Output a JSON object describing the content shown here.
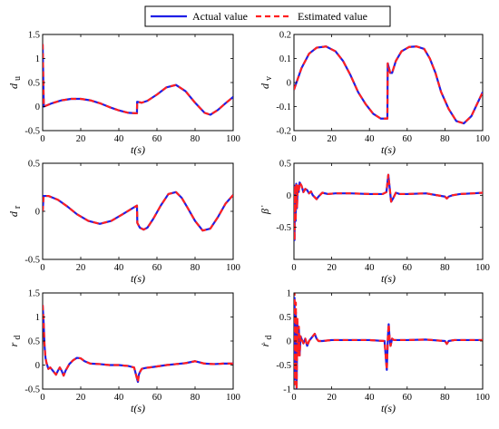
{
  "legend": {
    "entries": [
      {
        "label": "Actual value",
        "color": "#1f1fe6",
        "style": "solid"
      },
      {
        "label": "Estimated value",
        "color": "#ff2020",
        "style": "dashed"
      }
    ]
  },
  "chart_data": [
    {
      "type": "line",
      "id": "du",
      "ylabel": "d",
      "ylabel_sub": "u",
      "xlabel": "t(s)",
      "xlim": [
        0,
        100
      ],
      "ylim": [
        -0.5,
        1.5
      ],
      "xticks": [
        0,
        20,
        40,
        60,
        80,
        100
      ],
      "xtick_labels": [
        "0",
        "20",
        "40",
        "60",
        "80",
        "100"
      ],
      "yticks": [
        -0.5,
        0,
        0.5,
        1,
        1.5
      ],
      "ytick_labels": [
        "-0.5",
        "0",
        "0.5",
        "1",
        "1.5"
      ],
      "series": [
        {
          "name": "Actual value",
          "x": [
            0,
            0.6,
            5,
            10,
            15,
            20,
            25,
            30,
            35,
            40,
            45,
            49.5,
            49.6,
            52,
            55,
            60,
            65,
            70,
            75,
            80,
            85,
            88,
            92,
            96,
            100
          ],
          "y": [
            1.3,
            0.0,
            0.07,
            0.13,
            0.16,
            0.16,
            0.13,
            0.07,
            -0.01,
            -0.08,
            -0.13,
            -0.14,
            0.1,
            0.08,
            0.12,
            0.25,
            0.4,
            0.45,
            0.32,
            0.08,
            -0.13,
            -0.17,
            -0.07,
            0.07,
            0.2
          ]
        },
        {
          "name": "Estimated value",
          "x": [
            0,
            0.6,
            5,
            10,
            15,
            20,
            25,
            30,
            35,
            40,
            45,
            49.5,
            49.6,
            52,
            55,
            60,
            65,
            70,
            75,
            80,
            85,
            88,
            92,
            96,
            100
          ],
          "y": [
            1.3,
            0.0,
            0.07,
            0.13,
            0.16,
            0.16,
            0.13,
            0.07,
            -0.01,
            -0.08,
            -0.13,
            -0.14,
            0.1,
            0.08,
            0.12,
            0.25,
            0.4,
            0.45,
            0.32,
            0.08,
            -0.13,
            -0.17,
            -0.07,
            0.07,
            0.2
          ]
        }
      ]
    },
    {
      "type": "line",
      "id": "dv",
      "ylabel": "d",
      "ylabel_sub": "v",
      "xlabel": "t(s)",
      "xlim": [
        0,
        100
      ],
      "ylim": [
        -0.2,
        0.2
      ],
      "xticks": [
        0,
        20,
        40,
        60,
        80,
        100
      ],
      "xtick_labels": [
        "0",
        "20",
        "40",
        "60",
        "80",
        "100"
      ],
      "yticks": [
        -0.2,
        -0.1,
        0,
        0.1,
        0.2
      ],
      "ytick_labels": [
        "-0.2",
        "-0.1",
        "0",
        "0.1",
        "0.2"
      ],
      "series": [
        {
          "name": "Actual value",
          "x": [
            0,
            4,
            8,
            12,
            17,
            22,
            26,
            30,
            34,
            38,
            42,
            46,
            49.5,
            49.7,
            51,
            52,
            54,
            57,
            61,
            65,
            69,
            72,
            75,
            78,
            82,
            86,
            90,
            94,
            97,
            100
          ],
          "y": [
            -0.03,
            0.06,
            0.12,
            0.145,
            0.15,
            0.13,
            0.09,
            0.03,
            -0.04,
            -0.09,
            -0.13,
            -0.15,
            -0.15,
            0.08,
            0.04,
            0.04,
            0.09,
            0.13,
            0.148,
            0.15,
            0.14,
            0.1,
            0.04,
            -0.04,
            -0.11,
            -0.16,
            -0.17,
            -0.14,
            -0.09,
            -0.04
          ]
        },
        {
          "name": "Estimated value",
          "x": [
            0,
            4,
            8,
            12,
            17,
            22,
            26,
            30,
            34,
            38,
            42,
            46,
            49.5,
            49.7,
            51,
            52,
            54,
            57,
            61,
            65,
            69,
            72,
            75,
            78,
            82,
            86,
            90,
            94,
            97,
            100
          ],
          "y": [
            -0.03,
            0.06,
            0.12,
            0.145,
            0.15,
            0.13,
            0.09,
            0.03,
            -0.04,
            -0.09,
            -0.13,
            -0.15,
            -0.15,
            0.08,
            0.04,
            0.04,
            0.09,
            0.13,
            0.148,
            0.15,
            0.14,
            0.1,
            0.04,
            -0.04,
            -0.11,
            -0.16,
            -0.17,
            -0.14,
            -0.09,
            -0.04
          ]
        }
      ]
    },
    {
      "type": "line",
      "id": "dr",
      "ylabel": "d",
      "ylabel_sub": "r",
      "xlabel": "t(s)",
      "xlim": [
        0,
        100
      ],
      "ylim": [
        -0.5,
        0.5
      ],
      "xticks": [
        0,
        20,
        40,
        60,
        80,
        100
      ],
      "xtick_labels": [
        "0",
        "20",
        "40",
        "60",
        "80",
        "100"
      ],
      "yticks": [
        -0.5,
        0,
        0.5
      ],
      "ytick_labels": [
        "-0.5",
        "0",
        "0.5"
      ],
      "series": [
        {
          "name": "Actual value",
          "x": [
            0,
            0.5,
            3,
            8,
            13,
            18,
            24,
            30,
            36,
            42,
            47,
            49.5,
            49.7,
            51,
            53,
            55,
            58,
            62,
            66,
            70,
            73,
            76,
            80,
            84,
            88,
            92,
            96,
            100
          ],
          "y": [
            0.0,
            0.16,
            0.16,
            0.12,
            0.05,
            -0.03,
            -0.1,
            -0.13,
            -0.1,
            -0.03,
            0.03,
            0.06,
            -0.12,
            -0.17,
            -0.19,
            -0.17,
            -0.08,
            0.06,
            0.18,
            0.2,
            0.14,
            0.04,
            -0.1,
            -0.2,
            -0.18,
            -0.06,
            0.08,
            0.17
          ]
        },
        {
          "name": "Estimated value",
          "x": [
            0,
            0.5,
            3,
            8,
            13,
            18,
            24,
            30,
            36,
            42,
            47,
            49.5,
            49.7,
            51,
            53,
            55,
            58,
            62,
            66,
            70,
            73,
            76,
            80,
            84,
            88,
            92,
            96,
            100
          ],
          "y": [
            0.0,
            0.16,
            0.16,
            0.12,
            0.05,
            -0.03,
            -0.1,
            -0.13,
            -0.1,
            -0.03,
            0.03,
            0.06,
            -0.12,
            -0.17,
            -0.19,
            -0.17,
            -0.08,
            0.06,
            0.18,
            0.2,
            0.14,
            0.04,
            -0.1,
            -0.2,
            -0.18,
            -0.06,
            0.08,
            0.17
          ]
        }
      ]
    },
    {
      "type": "line",
      "id": "beta",
      "ylabel": "β̇",
      "ylabel_sub": "",
      "xlabel": "t(s)",
      "xlim": [
        0,
        100
      ],
      "ylim": [
        -1,
        0.5
      ],
      "xticks": [
        0,
        20,
        40,
        60,
        80,
        100
      ],
      "xtick_labels": [
        "0",
        "20",
        "40",
        "60",
        "80",
        "100"
      ],
      "yticks": [
        -0.5,
        0,
        0.5
      ],
      "ytick_labels": [
        "-0.5",
        "0",
        "0.5"
      ],
      "series": [
        {
          "name": "Actual value",
          "x": [
            0,
            0.3,
            0.6,
            0.9,
            1.2,
            1.6,
            2,
            2.5,
            3,
            4,
            5,
            6,
            7,
            8,
            9,
            10,
            11,
            12,
            13,
            15,
            18,
            22,
            30,
            40,
            47,
            49,
            50,
            50.6,
            51.5,
            52.5,
            54,
            56,
            60,
            70,
            80,
            81,
            82,
            84,
            88,
            95,
            100
          ],
          "y": [
            0,
            -0.7,
            0.15,
            -0.4,
            0.18,
            -0.2,
            0.15,
            0.05,
            0.2,
            0.15,
            0.05,
            0.1,
            0.08,
            0.03,
            0.06,
            0.0,
            -0.03,
            -0.06,
            -0.02,
            0.04,
            0.02,
            0.03,
            0.03,
            0.02,
            0.02,
            0.05,
            0.32,
            0.15,
            -0.1,
            -0.05,
            0.04,
            0.02,
            0.02,
            0.03,
            -0.02,
            -0.05,
            -0.02,
            0.0,
            0.02,
            0.03,
            0.04
          ]
        },
        {
          "name": "Estimated value",
          "x": [
            0,
            0.3,
            0.6,
            0.9,
            1.2,
            1.6,
            2,
            2.5,
            3,
            4,
            5,
            6,
            7,
            8,
            9,
            10,
            11,
            12,
            13,
            15,
            18,
            22,
            30,
            40,
            47,
            49,
            50,
            50.6,
            51.5,
            52.5,
            54,
            56,
            60,
            70,
            80,
            81,
            82,
            84,
            88,
            95,
            100
          ],
          "y": [
            0,
            -0.7,
            0.15,
            -0.4,
            0.18,
            -0.2,
            0.15,
            0.05,
            0.2,
            0.15,
            0.05,
            0.1,
            0.08,
            0.03,
            0.06,
            0.0,
            -0.03,
            -0.06,
            -0.02,
            0.04,
            0.02,
            0.03,
            0.03,
            0.02,
            0.02,
            0.05,
            0.32,
            0.15,
            -0.1,
            -0.05,
            0.04,
            0.02,
            0.02,
            0.03,
            -0.02,
            -0.05,
            -0.02,
            0.0,
            0.02,
            0.03,
            0.04
          ]
        }
      ]
    },
    {
      "type": "line",
      "id": "rd",
      "ylabel": "r",
      "ylabel_sub": "d",
      "xlabel": "t(s)",
      "xlim": [
        0,
        100
      ],
      "ylim": [
        -0.5,
        1.5
      ],
      "xticks": [
        0,
        20,
        40,
        60,
        80,
        100
      ],
      "xtick_labels": [
        "0",
        "20",
        "40",
        "60",
        "80",
        "100"
      ],
      "yticks": [
        -0.5,
        0,
        0.5,
        1,
        1.5
      ],
      "ytick_labels": [
        "-0.5",
        "0",
        "0.5",
        "1",
        "1.5"
      ],
      "series": [
        {
          "name": "Actual value",
          "x": [
            0,
            0.5,
            1,
            1.5,
            2,
            3,
            4,
            5,
            6,
            7,
            8,
            9,
            10,
            11,
            12,
            14,
            16,
            18,
            20,
            22,
            25,
            30,
            35,
            40,
            45,
            48,
            49,
            50,
            50.5,
            51,
            52,
            54,
            58,
            65,
            70,
            75,
            80,
            82,
            85,
            90,
            95,
            100
          ],
          "y": [
            1.25,
            0.9,
            0.4,
            0.15,
            0.05,
            -0.08,
            -0.05,
            -0.1,
            -0.15,
            -0.2,
            -0.12,
            -0.05,
            -0.12,
            -0.22,
            -0.12,
            0.02,
            0.1,
            0.15,
            0.14,
            0.08,
            0.03,
            0.02,
            0.0,
            0.0,
            -0.02,
            -0.05,
            -0.2,
            -0.35,
            -0.2,
            -0.15,
            -0.08,
            -0.06,
            -0.04,
            0.0,
            0.02,
            0.04,
            0.08,
            0.06,
            0.03,
            0.02,
            0.03,
            0.03
          ]
        },
        {
          "name": "Estimated value",
          "x": [
            0,
            0.5,
            1,
            1.5,
            2,
            3,
            4,
            5,
            6,
            7,
            8,
            9,
            10,
            11,
            12,
            14,
            16,
            18,
            20,
            22,
            25,
            30,
            35,
            40,
            45,
            48,
            49,
            50,
            50.5,
            51,
            52,
            54,
            58,
            65,
            70,
            75,
            80,
            82,
            85,
            90,
            95,
            100
          ],
          "y": [
            1.25,
            0.9,
            0.4,
            0.15,
            0.05,
            -0.08,
            -0.05,
            -0.1,
            -0.15,
            -0.2,
            -0.12,
            -0.05,
            -0.12,
            -0.22,
            -0.12,
            0.02,
            0.1,
            0.15,
            0.14,
            0.08,
            0.03,
            0.02,
            0.0,
            0.0,
            -0.02,
            -0.05,
            -0.2,
            -0.35,
            -0.2,
            -0.15,
            -0.08,
            -0.06,
            -0.04,
            0.0,
            0.02,
            0.04,
            0.08,
            0.06,
            0.03,
            0.02,
            0.03,
            0.03
          ]
        }
      ]
    },
    {
      "type": "line",
      "id": "rdot",
      "ylabel": "ṙ",
      "ylabel_sub": "d",
      "xlabel": "t(s)",
      "xlim": [
        0,
        100
      ],
      "ylim": [
        -1,
        1
      ],
      "xticks": [
        0,
        20,
        40,
        60,
        80,
        100
      ],
      "xtick_labels": [
        "0",
        "20",
        "40",
        "60",
        "80",
        "100"
      ],
      "yticks": [
        -1,
        -0.5,
        0,
        0.5,
        1
      ],
      "ytick_labels": [
        "-1",
        "-0.5",
        "0",
        "0.5",
        "1"
      ],
      "series": [
        {
          "name": "Actual value",
          "x": [
            0,
            0.3,
            0.6,
            1,
            1.4,
            1.8,
            2.2,
            2.6,
            3,
            3.5,
            4,
            5,
            6,
            7,
            8,
            9,
            10,
            11,
            12,
            13,
            15,
            20,
            30,
            40,
            48,
            49.2,
            49.8,
            50.2,
            50.7,
            51.2,
            52,
            53,
            56,
            60,
            70,
            80,
            81,
            82,
            85,
            90,
            100
          ],
          "y": [
            0,
            0.9,
            -0.8,
            0.6,
            -1.0,
            0.4,
            -0.2,
            0.25,
            -0.3,
            0.1,
            0.05,
            -0.05,
            0.05,
            -0.1,
            0.0,
            0.05,
            0.1,
            0.15,
            0.05,
            0.0,
            0.0,
            0.02,
            0.02,
            0.02,
            0.0,
            -0.6,
            0.1,
            0.35,
            0.05,
            -0.1,
            0.05,
            0.02,
            0.02,
            0.02,
            0.03,
            0.0,
            -0.06,
            0.0,
            0.02,
            0.02,
            0.02
          ]
        },
        {
          "name": "Estimated value",
          "x": [
            0,
            0.3,
            0.6,
            1,
            1.4,
            1.8,
            2.2,
            2.6,
            3,
            3.5,
            4,
            5,
            6,
            7,
            8,
            9,
            10,
            11,
            12,
            13,
            15,
            20,
            30,
            40,
            48,
            49.2,
            49.8,
            50.2,
            50.7,
            51.2,
            52,
            53,
            56,
            60,
            70,
            80,
            81,
            82,
            85,
            90,
            100
          ],
          "y": [
            0,
            1.0,
            -0.9,
            0.8,
            -1.0,
            0.5,
            -0.3,
            0.3,
            -0.3,
            0.1,
            0.05,
            -0.05,
            0.05,
            -0.1,
            0.0,
            0.05,
            0.1,
            0.15,
            0.05,
            0.0,
            0.0,
            0.02,
            0.02,
            0.02,
            0.0,
            -0.6,
            0.1,
            0.35,
            0.05,
            -0.1,
            0.05,
            0.02,
            0.02,
            0.02,
            0.03,
            0.0,
            -0.06,
            0.0,
            0.02,
            0.02,
            0.02
          ]
        }
      ]
    }
  ]
}
